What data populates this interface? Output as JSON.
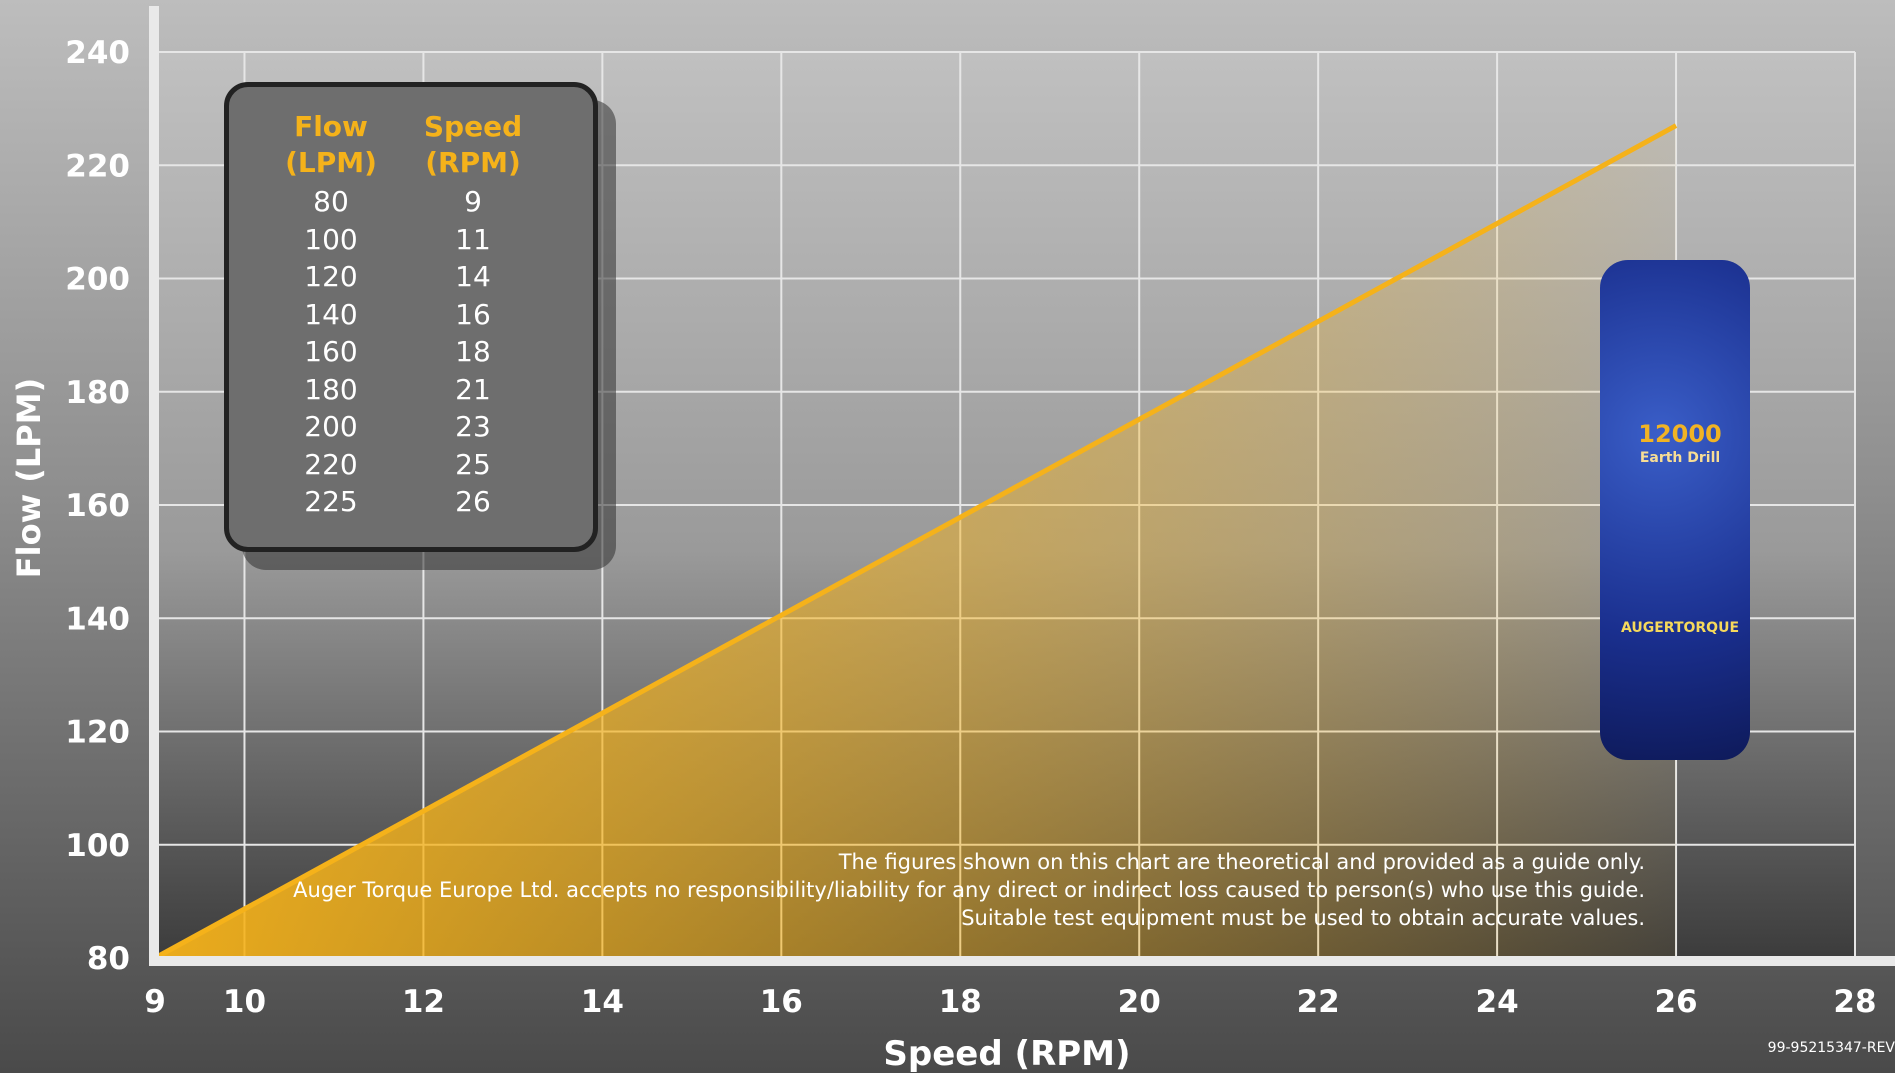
{
  "chart_data": {
    "type": "area",
    "xlabel": "Speed (RPM)",
    "ylabel": "Flow (LPM)",
    "xlim": [
      9,
      28
    ],
    "ylim": [
      80,
      240
    ],
    "x_ticks": [
      9,
      10,
      12,
      14,
      16,
      18,
      20,
      22,
      24,
      26,
      28
    ],
    "y_ticks": [
      80,
      100,
      120,
      140,
      160,
      180,
      200,
      220,
      240
    ],
    "grid": true,
    "series": [
      {
        "x": [
          9,
          26
        ],
        "y": [
          80,
          227
        ]
      }
    ],
    "legend_table": {
      "headers": [
        [
          "Flow",
          "(LPM)"
        ],
        [
          "Speed",
          "(RPM)"
        ]
      ],
      "rows": [
        [
          "80",
          "9"
        ],
        [
          "100",
          "11"
        ],
        [
          "120",
          "14"
        ],
        [
          "140",
          "16"
        ],
        [
          "160",
          "18"
        ],
        [
          "180",
          "21"
        ],
        [
          "200",
          "23"
        ],
        [
          "220",
          "25"
        ],
        [
          "225",
          "26"
        ]
      ]
    },
    "annotations": [
      "The figures shown on this chart are theoretical and provided as a guide only.",
      "Auger Torque Europe Ltd. accepts no responsibility/liability for any direct or indirect loss caused to person(s) who use this guide.",
      "Suitable test equipment must be used to obtain accurate values."
    ]
  },
  "product": {
    "model": "12000",
    "label": "Earth Drill",
    "brand": "AUGERTORQUE"
  },
  "doc_code": "99-95215347-REV",
  "colors": {
    "line": "#f5b21a",
    "header": "#f5b21a",
    "grid": "#e6e6e6"
  }
}
